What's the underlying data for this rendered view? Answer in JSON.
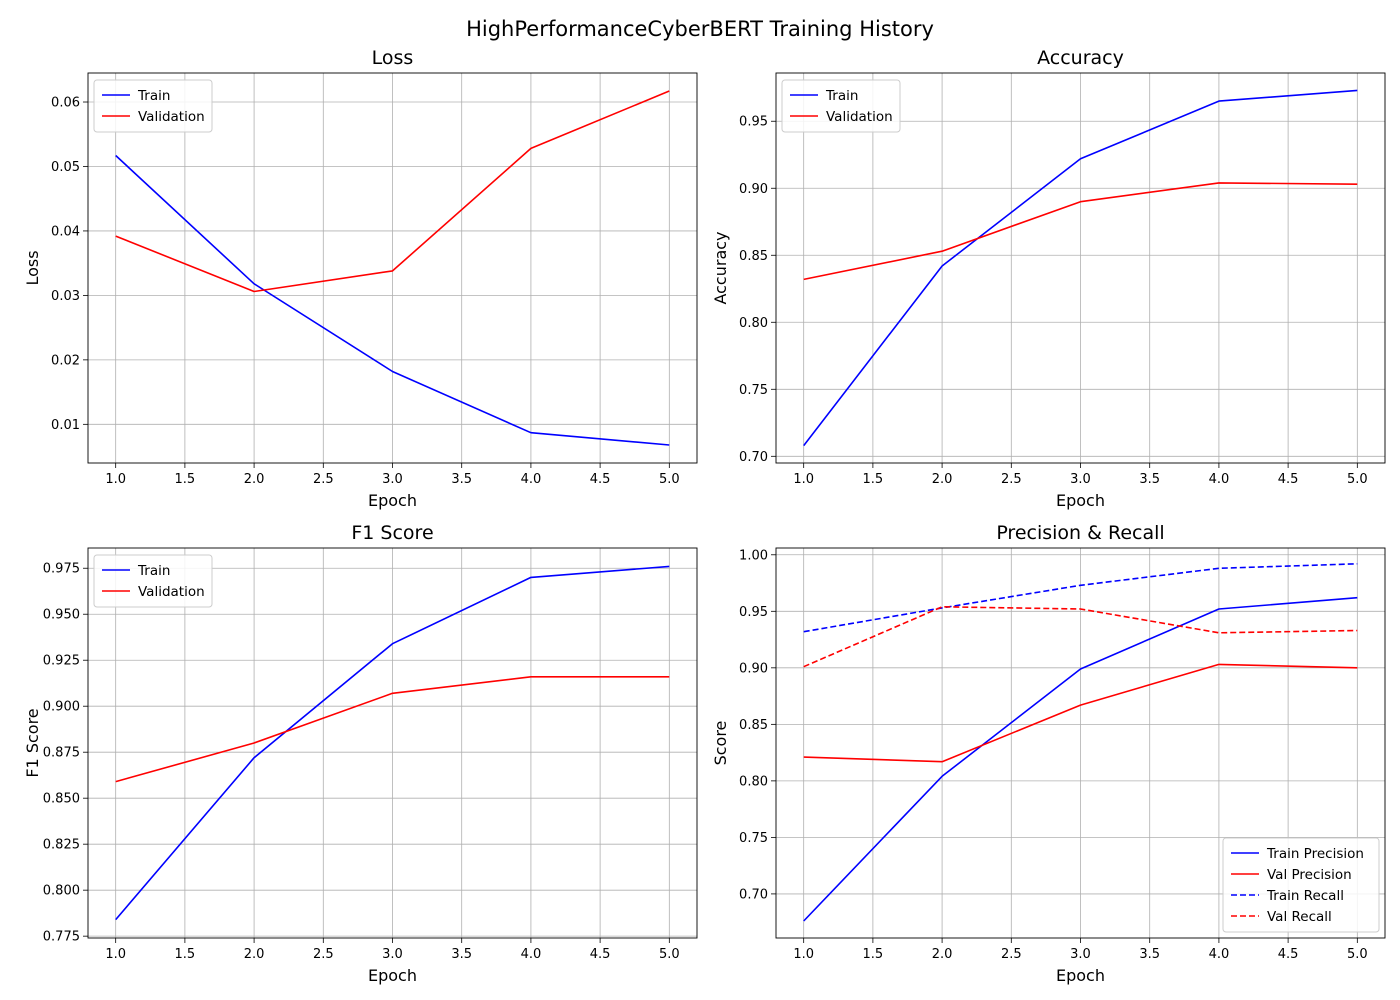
{
  "figure_title": "HighPerformanceCyberBERT Training History",
  "chart_data": [
    {
      "type": "line",
      "title": "Loss",
      "xlabel": "Epoch",
      "ylabel": "Loss",
      "x": [
        1,
        2,
        3,
        4,
        5
      ],
      "xlim": [
        0.8,
        5.2
      ],
      "ylim": [
        0.004,
        0.0645
      ],
      "xticks": [
        "1.0",
        "1.5",
        "2.0",
        "2.5",
        "3.0",
        "3.5",
        "4.0",
        "4.5",
        "5.0"
      ],
      "yticks": [
        "0.01",
        "0.02",
        "0.03",
        "0.04",
        "0.05",
        "0.06"
      ],
      "grid": true,
      "legend_position": "upper-left",
      "series": [
        {
          "name": "Train",
          "color": "#0000ff",
          "style": "solid",
          "values": [
            0.0517,
            0.0318,
            0.0182,
            0.0087,
            0.0068
          ]
        },
        {
          "name": "Validation",
          "color": "#ff0000",
          "style": "solid",
          "values": [
            0.0392,
            0.0306,
            0.0338,
            0.0528,
            0.0617
          ]
        }
      ]
    },
    {
      "type": "line",
      "title": "Accuracy",
      "xlabel": "Epoch",
      "ylabel": "Accuracy",
      "x": [
        1,
        2,
        3,
        4,
        5
      ],
      "xlim": [
        0.8,
        5.2
      ],
      "ylim": [
        0.695,
        0.986
      ],
      "xticks": [
        "1.0",
        "1.5",
        "2.0",
        "2.5",
        "3.0",
        "3.5",
        "4.0",
        "4.5",
        "5.0"
      ],
      "yticks": [
        "0.70",
        "0.75",
        "0.80",
        "0.85",
        "0.90",
        "0.95"
      ],
      "grid": true,
      "legend_position": "upper-left",
      "series": [
        {
          "name": "Train",
          "color": "#0000ff",
          "style": "solid",
          "values": [
            0.708,
            0.842,
            0.922,
            0.965,
            0.973
          ]
        },
        {
          "name": "Validation",
          "color": "#ff0000",
          "style": "solid",
          "values": [
            0.832,
            0.853,
            0.89,
            0.904,
            0.903
          ]
        }
      ]
    },
    {
      "type": "line",
      "title": "F1 Score",
      "xlabel": "Epoch",
      "ylabel": "F1 Score",
      "x": [
        1,
        2,
        3,
        4,
        5
      ],
      "xlim": [
        0.8,
        5.2
      ],
      "ylim": [
        0.774,
        0.986
      ],
      "xticks": [
        "1.0",
        "1.5",
        "2.0",
        "2.5",
        "3.0",
        "3.5",
        "4.0",
        "4.5",
        "5.0"
      ],
      "yticks": [
        "0.775",
        "0.800",
        "0.825",
        "0.850",
        "0.875",
        "0.900",
        "0.925",
        "0.950",
        "0.975"
      ],
      "grid": true,
      "legend_position": "upper-left",
      "series": [
        {
          "name": "Train",
          "color": "#0000ff",
          "style": "solid",
          "values": [
            0.784,
            0.872,
            0.934,
            0.97,
            0.976
          ]
        },
        {
          "name": "Validation",
          "color": "#ff0000",
          "style": "solid",
          "values": [
            0.859,
            0.88,
            0.907,
            0.916,
            0.916
          ]
        }
      ]
    },
    {
      "type": "line",
      "title": "Precision & Recall",
      "xlabel": "Epoch",
      "ylabel": "Score",
      "x": [
        1,
        2,
        3,
        4,
        5
      ],
      "xlim": [
        0.8,
        5.2
      ],
      "ylim": [
        0.661,
        1.006
      ],
      "xticks": [
        "1.0",
        "1.5",
        "2.0",
        "2.5",
        "3.0",
        "3.5",
        "4.0",
        "4.5",
        "5.0"
      ],
      "yticks": [
        "0.70",
        "0.75",
        "0.80",
        "0.85",
        "0.90",
        "0.95",
        "1.00"
      ],
      "grid": true,
      "legend_position": "lower-right",
      "series": [
        {
          "name": "Train Precision",
          "color": "#0000ff",
          "style": "solid",
          "values": [
            0.676,
            0.804,
            0.899,
            0.952,
            0.962
          ]
        },
        {
          "name": "Val Precision",
          "color": "#ff0000",
          "style": "solid",
          "values": [
            0.821,
            0.817,
            0.867,
            0.903,
            0.9
          ]
        },
        {
          "name": "Train Recall",
          "color": "#0000ff",
          "style": "dashed",
          "values": [
            0.932,
            0.953,
            0.973,
            0.988,
            0.992
          ]
        },
        {
          "name": "Val Recall",
          "color": "#ff0000",
          "style": "dashed",
          "values": [
            0.901,
            0.954,
            0.952,
            0.931,
            0.933
          ]
        }
      ]
    }
  ]
}
